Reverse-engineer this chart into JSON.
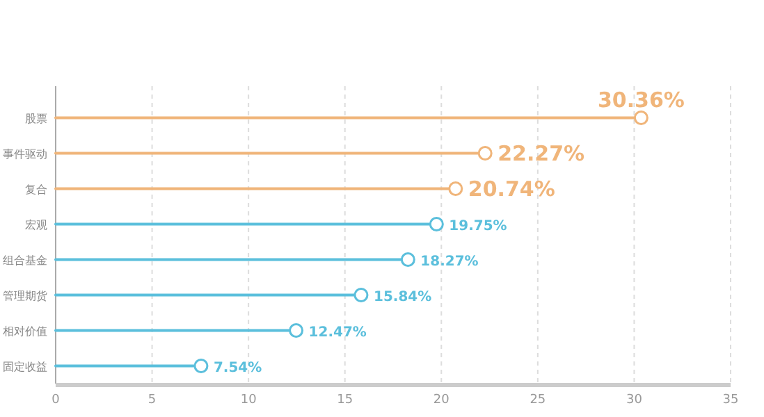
{
  "chart_data": {
    "type": "lollipop",
    "orientation": "horizontal",
    "categories": [
      "股票",
      "事件驱动",
      "复合",
      "宏观",
      "组合基金",
      "管理期货",
      "相对价值",
      "固定收益"
    ],
    "values": [
      30.36,
      22.27,
      20.74,
      19.75,
      18.27,
      15.84,
      12.47,
      7.54
    ],
    "colors": [
      "#f0b57a",
      "#f0b57a",
      "#f0b57a",
      "#5bbfdc",
      "#5bbfdc",
      "#5bbfdc",
      "#5bbfdc",
      "#5bbfdc"
    ],
    "value_labels": [
      "30.36%",
      "22.27%",
      "20.74%",
      "19.75%",
      "18.27%",
      "15.84%",
      "12.47%",
      "7.54%"
    ],
    "xlim": [
      0,
      35
    ],
    "xticks": [
      0,
      5,
      10,
      15,
      20,
      25,
      30,
      35
    ],
    "grid": "x",
    "marker": "circle"
  }
}
